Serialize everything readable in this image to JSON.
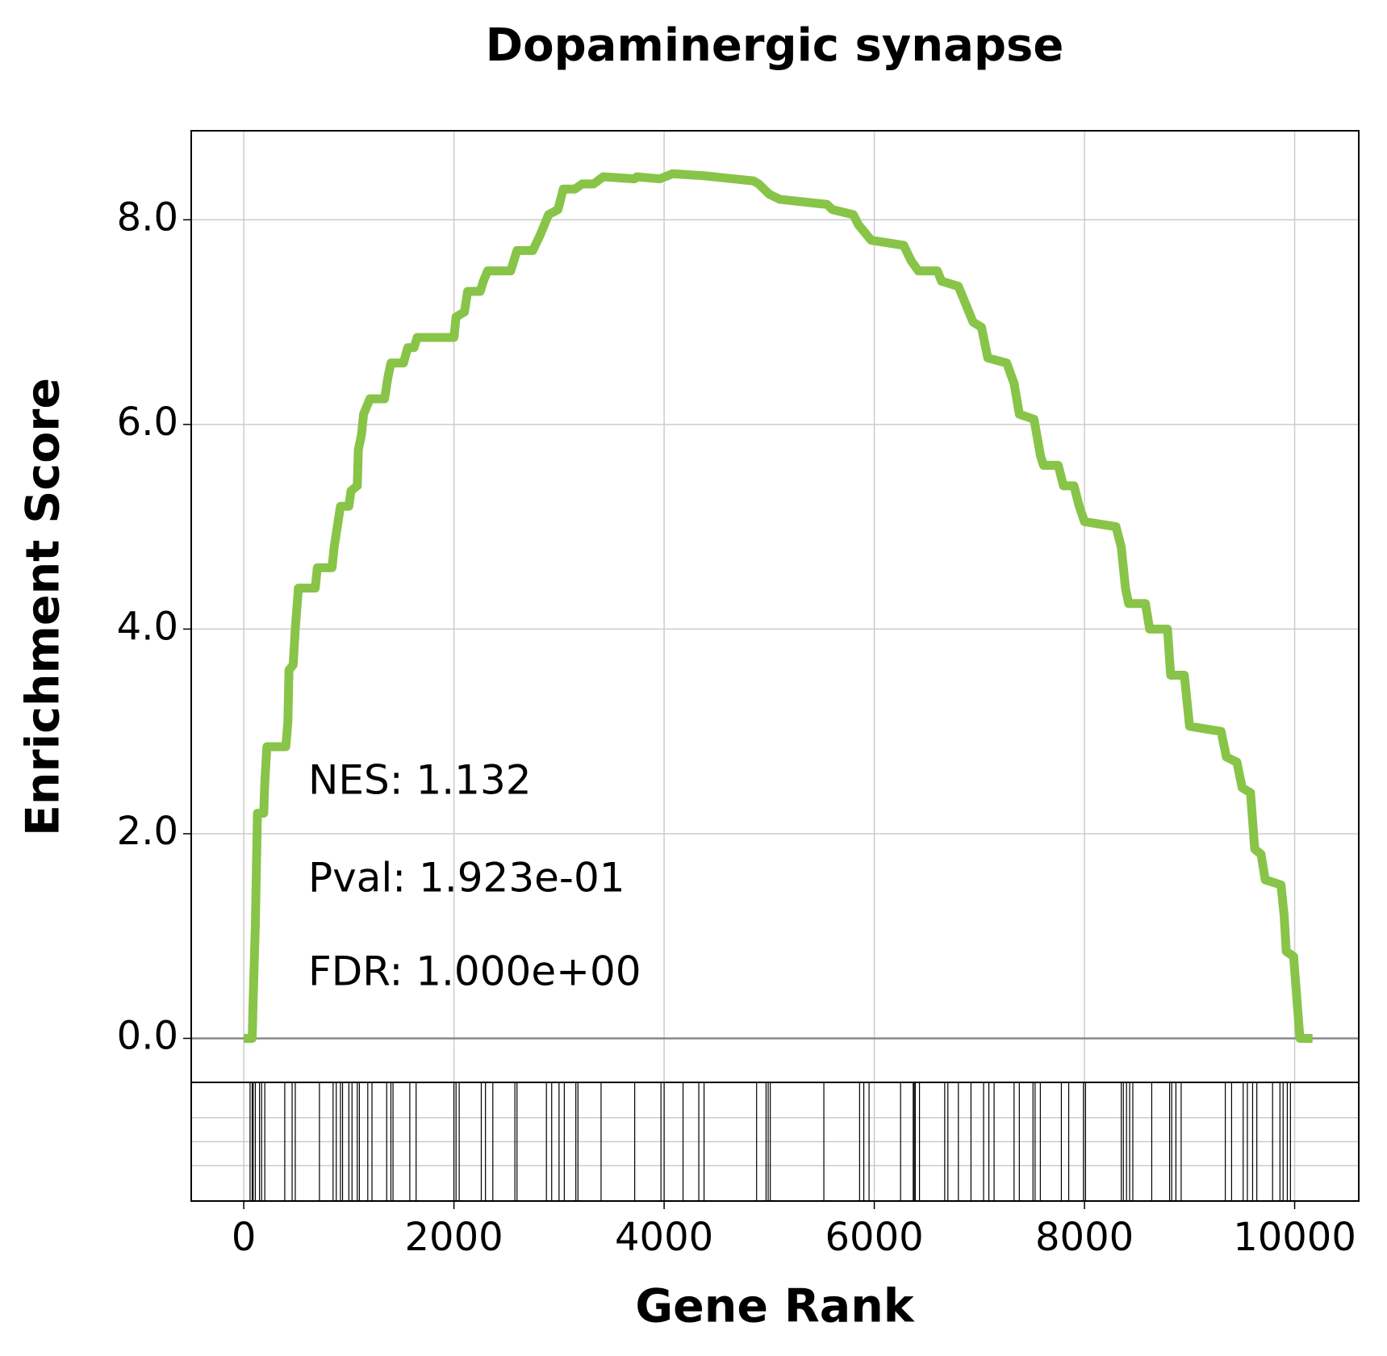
{
  "chart_data": {
    "type": "line",
    "title": "Dopaminergic synapse",
    "xlabel": "Gene Rank",
    "ylabel": "Enrichment Score",
    "annotations": [
      "NES: 1.132",
      "Pval: 1.923e-01",
      "FDR: 1.000e+00"
    ],
    "color": "#88c448",
    "grid": true,
    "xlim": [
      -500,
      10610
    ],
    "ylim": [
      -0.43,
      8.87
    ],
    "xticks": [
      0,
      2000,
      4000,
      6000,
      8000,
      10000
    ],
    "yticks": [
      {
        "value": 0,
        "label": "0.0"
      },
      {
        "value": 2,
        "label": "2.0"
      },
      {
        "value": 4,
        "label": "4.0"
      },
      {
        "value": 6,
        "label": "6.0"
      },
      {
        "value": 8,
        "label": "8.0"
      }
    ],
    "x": [
      0,
      80,
      90,
      110,
      130,
      190,
      200,
      220,
      400,
      420,
      430,
      470,
      490,
      520,
      680,
      700,
      840,
      860,
      890,
      920,
      1000,
      1020,
      1080,
      1090,
      1120,
      1140,
      1200,
      1340,
      1370,
      1400,
      1520,
      1560,
      1620,
      1650,
      2000,
      2020,
      2100,
      2130,
      2250,
      2280,
      2320,
      2540,
      2600,
      2750,
      2820,
      2900,
      2990,
      3040,
      3150,
      3220,
      3330,
      3420,
      3720,
      3740,
      3960,
      4080,
      4380,
      4850,
      4900,
      5000,
      5100,
      5550,
      5600,
      5800,
      5850,
      5970,
      6280,
      6350,
      6420,
      6600,
      6640,
      6800,
      6880,
      6940,
      7020,
      7080,
      7260,
      7330,
      7380,
      7520,
      7580,
      7610,
      7750,
      7800,
      7900,
      7950,
      8000,
      8300,
      8350,
      8390,
      8420,
      8580,
      8620,
      8790,
      8820,
      8950,
      9000,
      9300,
      9350,
      9450,
      9500,
      9580,
      9620,
      9680,
      9720,
      9870,
      9900,
      9920,
      9990,
      10020,
      10050,
      10170
    ],
    "values": [
      0,
      0,
      0.4,
      1.1,
      2.2,
      2.2,
      2.5,
      2.85,
      2.85,
      3.1,
      3.6,
      3.65,
      4.0,
      4.4,
      4.4,
      4.6,
      4.6,
      4.8,
      5.0,
      5.2,
      5.2,
      5.35,
      5.4,
      5.75,
      5.9,
      6.1,
      6.25,
      6.25,
      6.45,
      6.6,
      6.6,
      6.75,
      6.75,
      6.85,
      6.85,
      7.05,
      7.1,
      7.3,
      7.3,
      7.4,
      7.5,
      7.5,
      7.7,
      7.7,
      7.85,
      8.05,
      8.1,
      8.3,
      8.3,
      8.35,
      8.35,
      8.42,
      8.4,
      8.42,
      8.4,
      8.45,
      8.43,
      8.38,
      8.35,
      8.25,
      8.2,
      8.15,
      8.1,
      8.05,
      7.95,
      7.8,
      7.75,
      7.6,
      7.5,
      7.5,
      7.4,
      7.35,
      7.15,
      7.0,
      6.95,
      6.65,
      6.6,
      6.4,
      6.1,
      6.05,
      5.7,
      5.6,
      5.6,
      5.4,
      5.4,
      5.2,
      5.05,
      5.0,
      4.8,
      4.4,
      4.25,
      4.25,
      4.0,
      4.0,
      3.55,
      3.55,
      3.05,
      3.0,
      2.75,
      2.7,
      2.45,
      2.4,
      1.85,
      1.8,
      1.55,
      1.5,
      1.2,
      0.85,
      0.8,
      0.4,
      0,
      0
    ],
    "hits": [
      60,
      80,
      90,
      110,
      150,
      170,
      200,
      390,
      460,
      490,
      720,
      850,
      880,
      920,
      940,
      1000,
      1030,
      1080,
      1100,
      1180,
      1220,
      1360,
      1400,
      1420,
      1580,
      1640,
      2000,
      2020,
      2050,
      2260,
      2300,
      2370,
      2580,
      2600,
      2880,
      2930,
      3000,
      3050,
      3160,
      3180,
      3400,
      3720,
      3970,
      4000,
      4180,
      4330,
      4380,
      4880,
      4970,
      4990,
      5010,
      5520,
      5860,
      5900,
      5950,
      6250,
      6370,
      6380,
      6390,
      6430,
      6670,
      6700,
      6800,
      6920,
      7040,
      7090,
      7140,
      7330,
      7380,
      7510,
      7530,
      7580,
      7780,
      7850,
      7990,
      8010,
      8350,
      8370,
      8400,
      8430,
      8460,
      8640,
      8810,
      8830,
      8870,
      8920,
      9340,
      9400,
      9510,
      9550,
      9600,
      9640,
      9790,
      9860,
      9890,
      9930,
      9960
    ]
  }
}
